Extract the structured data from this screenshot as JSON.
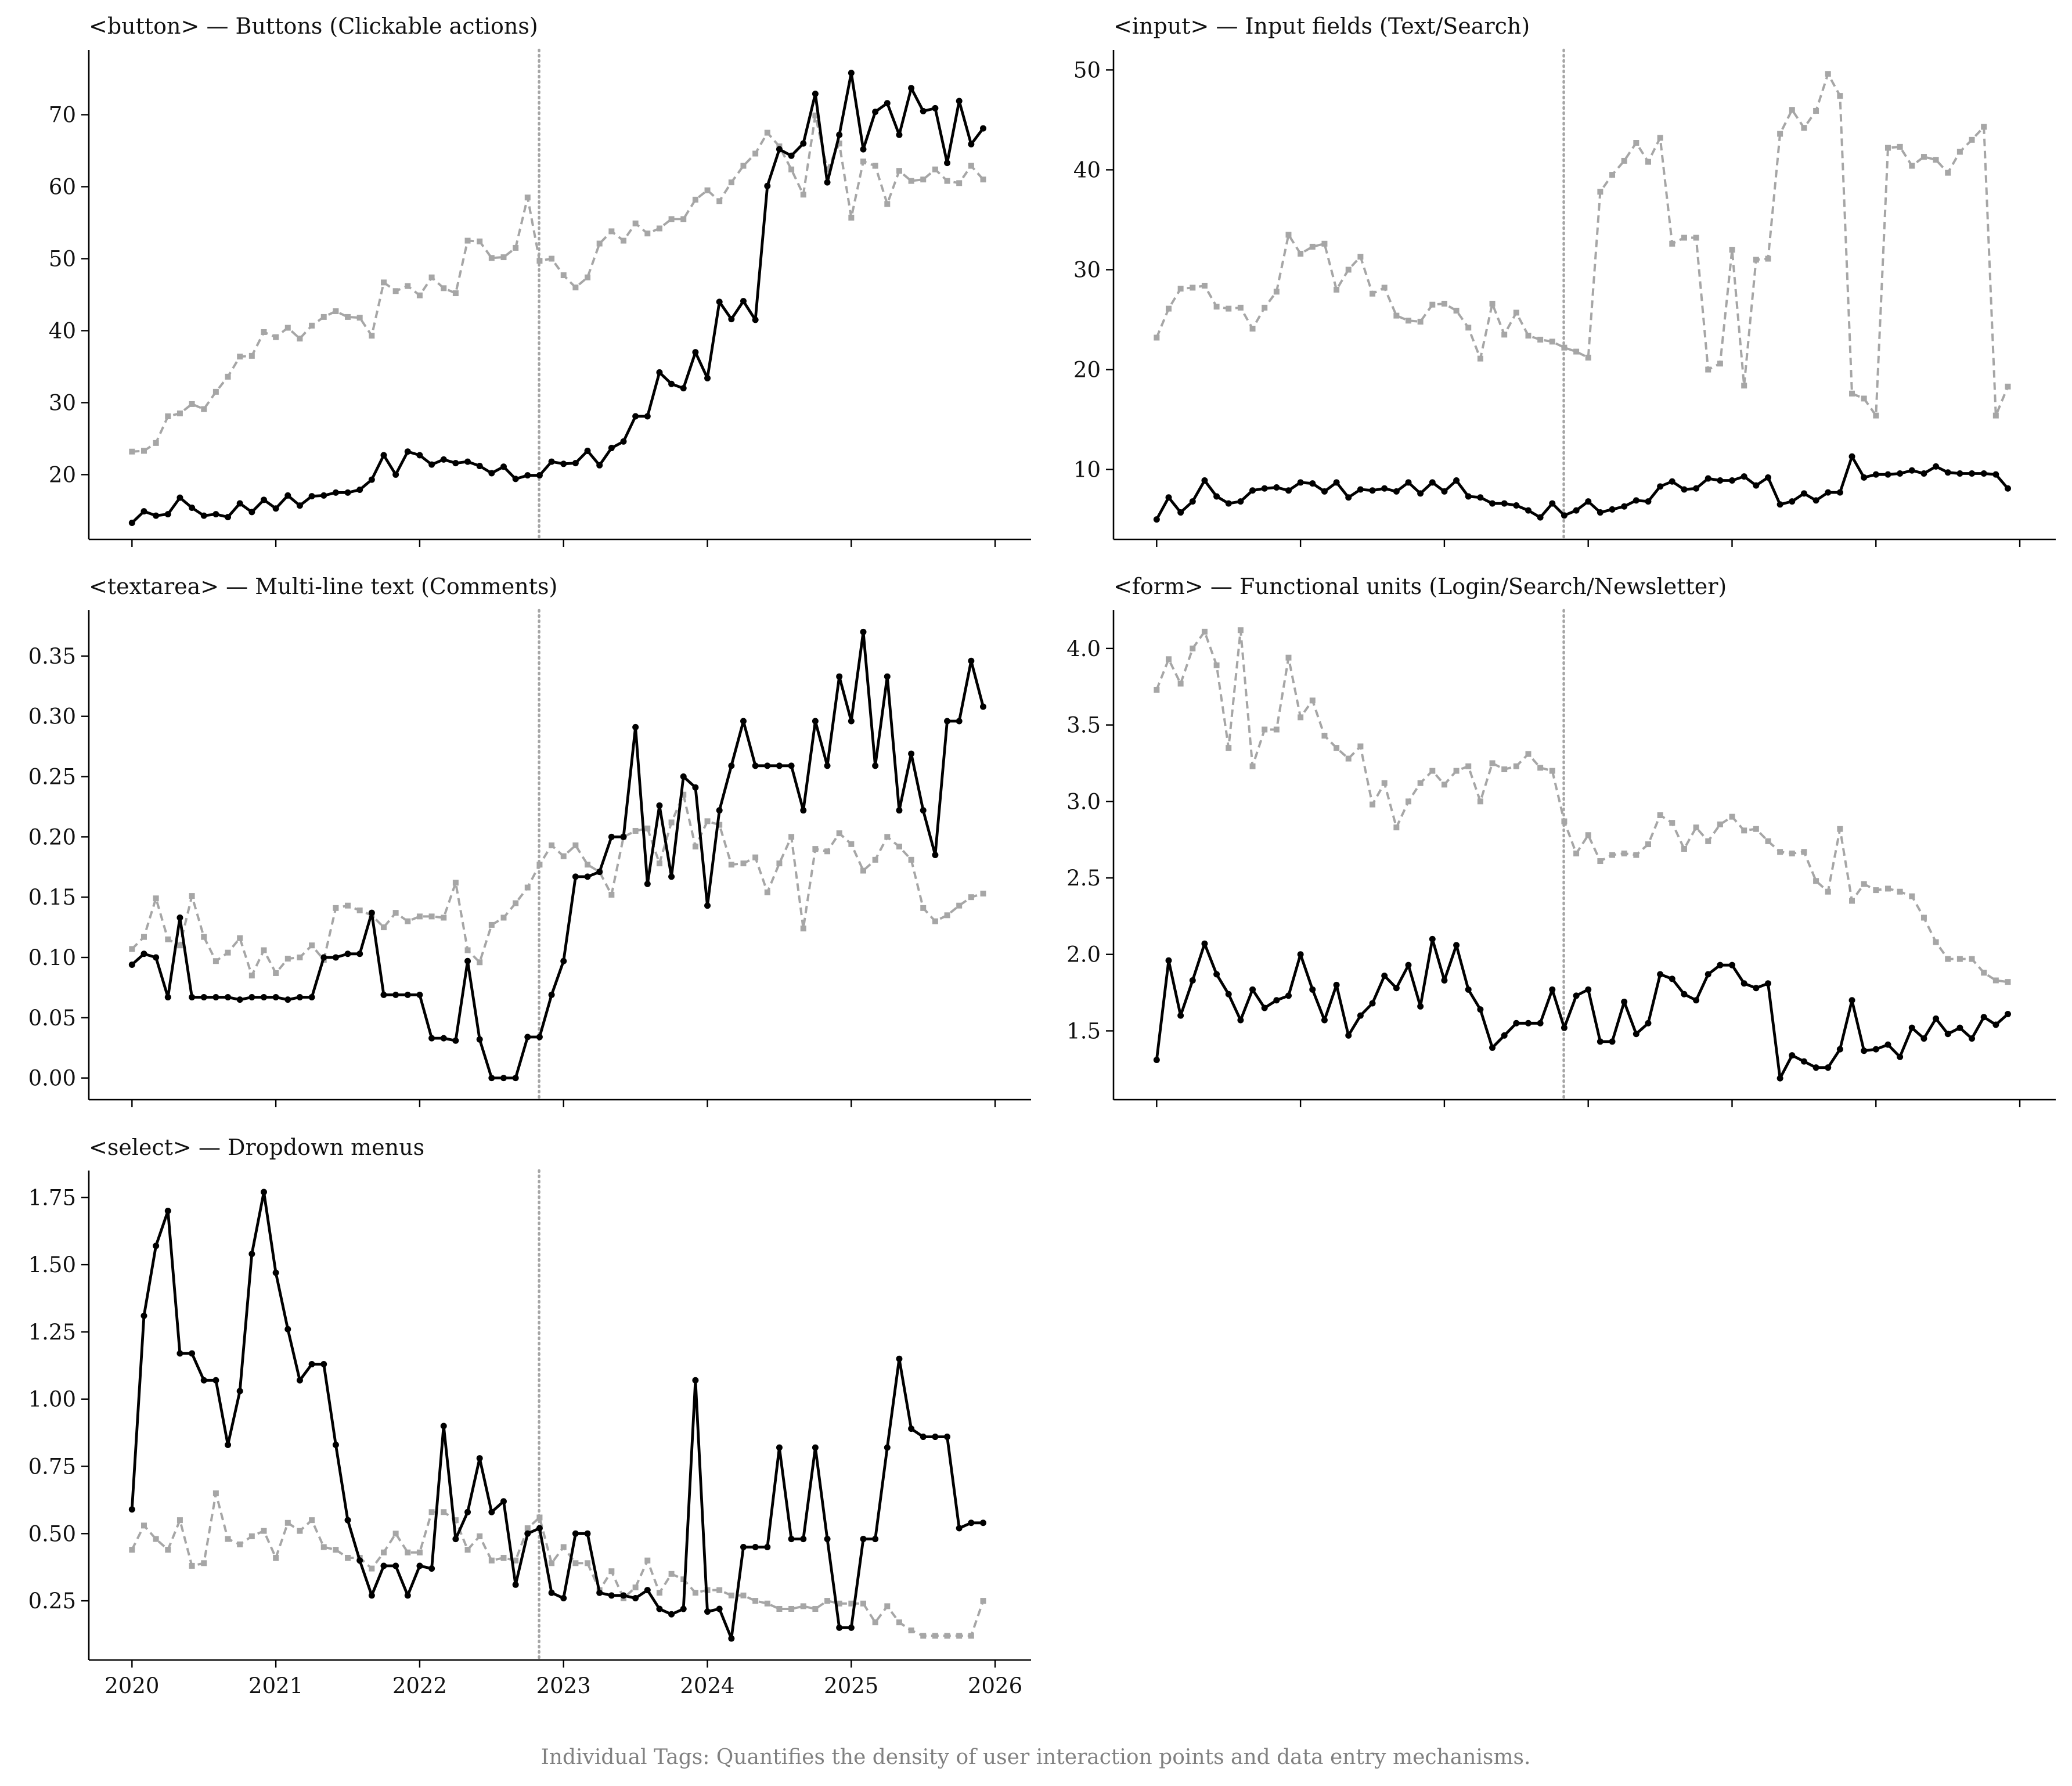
{
  "figure": {
    "caption": "Individual Tags: Quantifies the density of user interaction points and data entry mechanisms.",
    "marker_date": 2022.83,
    "colors": {
      "primary": "#000000",
      "secondary": "#a6a6a6",
      "marker": "#a6a6a6",
      "caption": "#808080"
    }
  },
  "chart_data": [
    {
      "type": "line",
      "title": "<button> — Buttons (Clickable actions)",
      "x_range": [
        2019.7,
        2026.25
      ],
      "ylim": [
        11,
        79
      ],
      "yticks": [
        20,
        30,
        40,
        50,
        60,
        70
      ],
      "ytick_labels": [
        "20",
        "30",
        "40",
        "50",
        "60",
        "70"
      ],
      "xticks": [
        2020,
        2021,
        2022,
        2023,
        2024,
        2025,
        2026
      ],
      "xtick_labels": [],
      "series": [
        {
          "name": "primary",
          "style": "solid-dot",
          "values": [
            13.3,
            14.9,
            14.3,
            14.5,
            16.8,
            15.4,
            14.3,
            14.5,
            14.1,
            16.0,
            14.8,
            16.5,
            15.3,
            17.1,
            15.7,
            17.0,
            17.1,
            17.5,
            17.5,
            17.9,
            19.3,
            22.7,
            20.0,
            23.2,
            22.7,
            21.4,
            22.1,
            21.6,
            21.8,
            21.2,
            20.2,
            21.1,
            19.4,
            19.9,
            19.9,
            21.8,
            21.5,
            21.6,
            23.3,
            21.3,
            23.7,
            24.6,
            28.1,
            28.1,
            34.2,
            32.6,
            32.0,
            37.0,
            33.4,
            44.0,
            41.6,
            44.1,
            41.5,
            60.1,
            65.2,
            64.3,
            66.0,
            72.9,
            60.6,
            67.2,
            75.8,
            65.2,
            70.4,
            71.6,
            67.2,
            73.7,
            70.5,
            70.9,
            63.3,
            71.9,
            65.9,
            68.1
          ]
        },
        {
          "name": "secondary",
          "style": "dashed-square",
          "values": [
            23.2,
            23.3,
            24.4,
            28.1,
            28.5,
            29.8,
            29.1,
            31.5,
            33.6,
            36.4,
            36.5,
            39.8,
            39.1,
            40.4,
            38.9,
            40.7,
            41.9,
            42.7,
            41.9,
            41.8,
            39.3,
            46.7,
            45.5,
            46.2,
            44.9,
            47.4,
            45.9,
            45.2,
            52.5,
            52.4,
            50.1,
            50.2,
            51.5,
            58.5,
            49.7,
            50.0,
            47.7,
            46.0,
            47.4,
            52.1,
            53.8,
            52.5,
            54.9,
            53.5,
            54.2,
            55.5,
            55.5,
            58.2,
            59.5,
            58.0,
            60.6,
            62.9,
            64.6,
            67.5,
            65.6,
            62.4,
            58.9,
            69.9,
            62.4,
            66.0,
            55.7,
            63.5,
            62.9,
            57.6,
            62.2,
            60.8,
            61.0,
            62.4,
            60.8,
            60.5,
            62.9,
            61.0
          ]
        }
      ]
    },
    {
      "type": "line",
      "title": "<input> — Input fields (Text/Search)",
      "x_range": [
        2019.7,
        2026.25
      ],
      "ylim": [
        3,
        52
      ],
      "yticks": [
        10,
        20,
        30,
        40,
        50
      ],
      "ytick_labels": [
        "10",
        "20",
        "30",
        "40",
        "50"
      ],
      "xticks": [
        2020,
        2021,
        2022,
        2023,
        2024,
        2025,
        2026
      ],
      "xtick_labels": [],
      "series": [
        {
          "name": "primary",
          "style": "solid-dot",
          "values": [
            5.0,
            7.2,
            5.7,
            6.8,
            8.9,
            7.3,
            6.6,
            6.8,
            7.9,
            8.1,
            8.2,
            7.9,
            8.7,
            8.6,
            7.8,
            8.7,
            7.2,
            8.0,
            7.9,
            8.1,
            7.8,
            8.7,
            7.6,
            8.7,
            7.8,
            8.9,
            7.3,
            7.2,
            6.6,
            6.6,
            6.4,
            5.9,
            5.2,
            6.6,
            5.4,
            5.9,
            6.8,
            5.7,
            6.0,
            6.3,
            6.9,
            6.8,
            8.3,
            8.8,
            8.0,
            8.1,
            9.1,
            8.9,
            8.9,
            9.3,
            8.4,
            9.2,
            6.5,
            6.8,
            7.6,
            6.9,
            7.7,
            7.7,
            11.3,
            9.2,
            9.5,
            9.5,
            9.6,
            9.9,
            9.6,
            10.3,
            9.7,
            9.6,
            9.6,
            9.6,
            9.5,
            8.1
          ]
        },
        {
          "name": "secondary",
          "style": "dashed-square",
          "values": [
            23.2,
            26.1,
            28.1,
            28.2,
            28.4,
            26.3,
            26.1,
            26.2,
            24.1,
            26.2,
            27.8,
            33.5,
            31.6,
            32.3,
            32.6,
            28.0,
            30.0,
            31.3,
            27.6,
            28.2,
            25.4,
            24.9,
            24.8,
            26.5,
            26.6,
            25.9,
            24.2,
            21.1,
            26.6,
            23.5,
            25.7,
            23.4,
            23.0,
            22.8,
            22.2,
            21.8,
            21.2,
            37.8,
            39.5,
            40.9,
            42.7,
            40.8,
            43.2,
            32.6,
            33.2,
            33.2,
            20.0,
            20.6,
            32.0,
            18.4,
            31.0,
            31.1,
            43.6,
            46.0,
            44.2,
            45.9,
            49.6,
            47.4,
            17.6,
            17.1,
            15.4,
            42.2,
            42.3,
            40.4,
            41.3,
            41.0,
            39.7,
            41.8,
            43.0,
            44.3,
            15.4,
            18.3
          ]
        }
      ]
    },
    {
      "type": "line",
      "title": "<textarea> — Multi-line text (Comments)",
      "x_range": [
        2019.7,
        2026.25
      ],
      "ylim": [
        -0.018,
        0.388
      ],
      "yticks": [
        0.0,
        0.05,
        0.1,
        0.15,
        0.2,
        0.25,
        0.3,
        0.35
      ],
      "ytick_labels": [
        "0.00",
        "0.05",
        "0.10",
        "0.15",
        "0.20",
        "0.25",
        "0.30",
        "0.35"
      ],
      "xticks": [
        2020,
        2021,
        2022,
        2023,
        2024,
        2025,
        2026
      ],
      "xtick_labels": [],
      "series": [
        {
          "name": "primary",
          "style": "solid-dot",
          "values": [
            0.094,
            0.103,
            0.1,
            0.067,
            0.133,
            0.067,
            0.067,
            0.067,
            0.067,
            0.065,
            0.067,
            0.067,
            0.067,
            0.065,
            0.067,
            0.067,
            0.1,
            0.1,
            0.103,
            0.103,
            0.137,
            0.069,
            0.069,
            0.069,
            0.069,
            0.033,
            0.033,
            0.031,
            0.097,
            0.032,
            0.0,
            0.0,
            0.0,
            0.034,
            0.034,
            0.069,
            0.097,
            0.167,
            0.167,
            0.171,
            0.2,
            0.2,
            0.291,
            0.161,
            0.226,
            0.167,
            0.25,
            0.241,
            0.143,
            0.222,
            0.259,
            0.296,
            0.259,
            0.259,
            0.259,
            0.259,
            0.222,
            0.296,
            0.259,
            0.333,
            0.296,
            0.37,
            0.259,
            0.333,
            0.222,
            0.269,
            0.222,
            0.185,
            0.296,
            0.296,
            0.346,
            0.308
          ]
        },
        {
          "name": "secondary",
          "style": "dashed-square",
          "values": [
            0.107,
            0.117,
            0.149,
            0.115,
            0.11,
            0.151,
            0.117,
            0.097,
            0.104,
            0.116,
            0.085,
            0.106,
            0.087,
            0.099,
            0.1,
            0.11,
            0.098,
            0.141,
            0.143,
            0.139,
            0.135,
            0.125,
            0.137,
            0.13,
            0.134,
            0.134,
            0.133,
            0.162,
            0.106,
            0.096,
            0.127,
            0.133,
            0.145,
            0.158,
            0.177,
            0.193,
            0.184,
            0.193,
            0.177,
            0.171,
            0.152,
            0.2,
            0.205,
            0.207,
            0.178,
            0.212,
            0.235,
            0.192,
            0.213,
            0.21,
            0.177,
            0.178,
            0.183,
            0.154,
            0.178,
            0.2,
            0.124,
            0.19,
            0.188,
            0.203,
            0.194,
            0.172,
            0.181,
            0.2,
            0.192,
            0.181,
            0.141,
            0.13,
            0.135,
            0.143,
            0.15,
            0.153
          ]
        }
      ]
    },
    {
      "type": "line",
      "title": "<form> — Functional units (Login/Search/Newsletter)",
      "x_range": [
        2019.7,
        2026.25
      ],
      "ylim": [
        1.05,
        4.25
      ],
      "yticks": [
        1.5,
        2.0,
        2.5,
        3.0,
        3.5,
        4.0
      ],
      "ytick_labels": [
        "1.5",
        "2.0",
        "2.5",
        "3.0",
        "3.5",
        "4.0"
      ],
      "xticks": [
        2020,
        2021,
        2022,
        2023,
        2024,
        2025,
        2026
      ],
      "xtick_labels": [],
      "series": [
        {
          "name": "primary",
          "style": "solid-dot",
          "values": [
            1.31,
            1.96,
            1.6,
            1.83,
            2.07,
            1.87,
            1.74,
            1.57,
            1.77,
            1.65,
            1.7,
            1.73,
            2.0,
            1.77,
            1.57,
            1.8,
            1.47,
            1.6,
            1.68,
            1.86,
            1.78,
            1.93,
            1.66,
            2.1,
            1.83,
            2.06,
            1.77,
            1.64,
            1.39,
            1.47,
            1.55,
            1.55,
            1.55,
            1.77,
            1.52,
            1.73,
            1.77,
            1.43,
            1.43,
            1.69,
            1.48,
            1.55,
            1.87,
            1.84,
            1.74,
            1.7,
            1.87,
            1.93,
            1.93,
            1.81,
            1.78,
            1.81,
            1.19,
            1.34,
            1.3,
            1.26,
            1.26,
            1.38,
            1.7,
            1.37,
            1.38,
            1.41,
            1.33,
            1.52,
            1.45,
            1.58,
            1.48,
            1.52,
            1.45,
            1.59,
            1.54,
            1.61
          ]
        },
        {
          "name": "secondary",
          "style": "dashed-square",
          "values": [
            3.73,
            3.93,
            3.77,
            4.0,
            4.11,
            3.89,
            3.35,
            4.12,
            3.23,
            3.47,
            3.47,
            3.94,
            3.55,
            3.66,
            3.43,
            3.35,
            3.28,
            3.36,
            2.98,
            3.12,
            2.83,
            3.0,
            3.12,
            3.2,
            3.11,
            3.2,
            3.23,
            3.0,
            3.25,
            3.21,
            3.23,
            3.31,
            3.22,
            3.2,
            2.87,
            2.66,
            2.78,
            2.61,
            2.65,
            2.66,
            2.65,
            2.72,
            2.91,
            2.86,
            2.69,
            2.83,
            2.74,
            2.85,
            2.9,
            2.81,
            2.82,
            2.74,
            2.67,
            2.66,
            2.67,
            2.48,
            2.41,
            2.82,
            2.35,
            2.46,
            2.42,
            2.43,
            2.41,
            2.38,
            2.24,
            2.08,
            1.97,
            1.97,
            1.97,
            1.88,
            1.83,
            1.82
          ]
        }
      ]
    },
    {
      "type": "line",
      "title": "<select> — Dropdown menus",
      "x_range": [
        2019.7,
        2026.25
      ],
      "ylim": [
        0.03,
        1.85
      ],
      "yticks": [
        0.25,
        0.5,
        0.75,
        1.0,
        1.25,
        1.5,
        1.75
      ],
      "ytick_labels": [
        "0.25",
        "0.50",
        "0.75",
        "1.00",
        "1.25",
        "1.50",
        "1.75"
      ],
      "xticks": [
        2020,
        2021,
        2022,
        2023,
        2024,
        2025,
        2026
      ],
      "xtick_labels": [
        "2020",
        "2021",
        "2022",
        "2023",
        "2024",
        "2025",
        "2026"
      ],
      "series": [
        {
          "name": "primary",
          "style": "solid-dot",
          "values": [
            0.59,
            1.31,
            1.57,
            1.7,
            1.17,
            1.17,
            1.07,
            1.07,
            0.83,
            1.03,
            1.54,
            1.77,
            1.47,
            1.26,
            1.07,
            1.13,
            1.13,
            0.83,
            0.55,
            0.4,
            0.27,
            0.38,
            0.38,
            0.27,
            0.38,
            0.37,
            0.9,
            0.48,
            0.58,
            0.78,
            0.58,
            0.62,
            0.31,
            0.5,
            0.52,
            0.28,
            0.26,
            0.5,
            0.5,
            0.28,
            0.27,
            0.27,
            0.26,
            0.29,
            0.22,
            0.2,
            0.22,
            1.07,
            0.21,
            0.22,
            0.11,
            0.45,
            0.45,
            0.45,
            0.82,
            0.48,
            0.48,
            0.82,
            0.48,
            0.15,
            0.15,
            0.48,
            0.48,
            0.82,
            1.15,
            0.89,
            0.86,
            0.86,
            0.86,
            0.52,
            0.54,
            0.54
          ]
        },
        {
          "name": "secondary",
          "style": "dashed-square",
          "values": [
            0.44,
            0.53,
            0.48,
            0.44,
            0.55,
            0.38,
            0.39,
            0.65,
            0.48,
            0.46,
            0.49,
            0.51,
            0.41,
            0.54,
            0.51,
            0.55,
            0.45,
            0.44,
            0.41,
            0.41,
            0.37,
            0.43,
            0.5,
            0.43,
            0.43,
            0.58,
            0.58,
            0.55,
            0.44,
            0.49,
            0.4,
            0.41,
            0.4,
            0.52,
            0.56,
            0.39,
            0.45,
            0.39,
            0.39,
            0.29,
            0.36,
            0.26,
            0.3,
            0.4,
            0.28,
            0.35,
            0.33,
            0.28,
            0.29,
            0.29,
            0.27,
            0.27,
            0.25,
            0.24,
            0.22,
            0.22,
            0.23,
            0.22,
            0.25,
            0.24,
            0.24,
            0.24,
            0.17,
            0.23,
            0.17,
            0.14,
            0.12,
            0.12,
            0.12,
            0.12,
            0.12,
            0.25
          ]
        }
      ]
    }
  ]
}
